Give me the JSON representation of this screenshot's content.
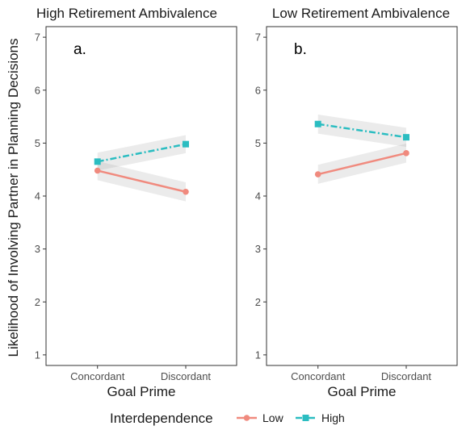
{
  "chart_data": {
    "type": "line",
    "y_label": "Likelihood of Involving Partner in Planning Decisions",
    "x_label": "Goal Prime",
    "categories": [
      "Concordant",
      "Discordant"
    ],
    "ylim": [
      0.8,
      7.2
    ],
    "y_ticks": [
      1,
      2,
      3,
      4,
      5,
      6,
      7
    ],
    "grid": false,
    "legend": {
      "title": "Interdependence",
      "placement": "bottom",
      "entries": [
        {
          "name": "Low",
          "color": "#F08A7E",
          "marker": "circle",
          "line": "solid"
        },
        {
          "name": "High",
          "color": "#2BBDC1",
          "marker": "square",
          "line": "dashdot"
        }
      ]
    },
    "panels": [
      {
        "title": "High Retirement Ambivalence",
        "tag": "a.",
        "series": [
          {
            "name": "Low",
            "values": [
              4.48,
              4.08
            ],
            "ci_low": [
              4.3,
              3.9
            ],
            "ci_high": [
              4.66,
              4.26
            ]
          },
          {
            "name": "High",
            "values": [
              4.65,
              4.98
            ],
            "ci_low": [
              4.48,
              4.81
            ],
            "ci_high": [
              4.82,
              5.15
            ]
          }
        ]
      },
      {
        "title": "Low Retirement Ambivalence",
        "tag": "b.",
        "series": [
          {
            "name": "Low",
            "values": [
              4.41,
              4.81
            ],
            "ci_low": [
              4.23,
              4.63
            ],
            "ci_high": [
              4.59,
              4.99
            ]
          },
          {
            "name": "High",
            "values": [
              5.36,
              5.11
            ],
            "ci_low": [
              5.18,
              4.93
            ],
            "ci_high": [
              5.54,
              5.29
            ]
          }
        ]
      }
    ]
  }
}
